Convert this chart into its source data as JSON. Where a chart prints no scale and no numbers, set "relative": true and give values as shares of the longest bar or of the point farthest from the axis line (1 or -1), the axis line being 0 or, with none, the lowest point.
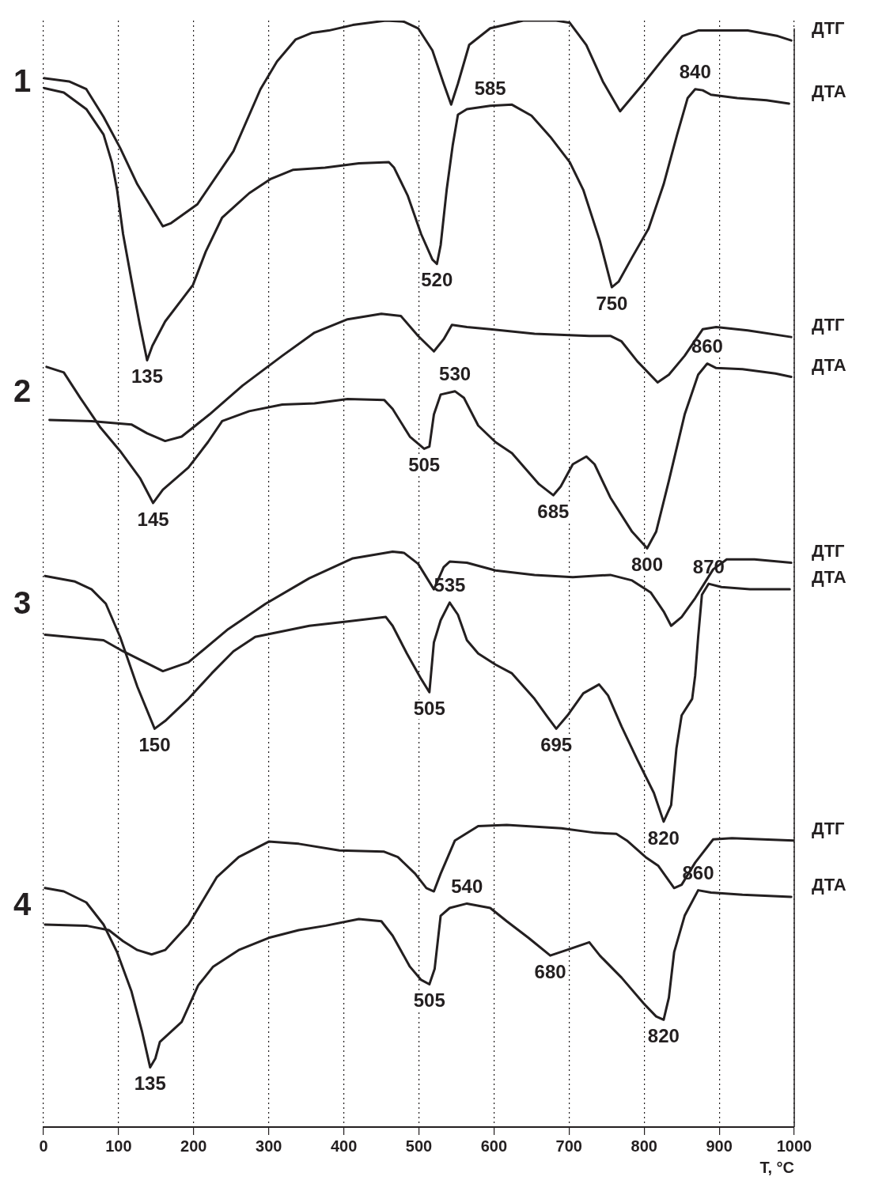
{
  "chart_data": {
    "type": "line",
    "relative": true,
    "xlabel": "T, °C",
    "xlim": [
      0,
      1000
    ],
    "xticks": [
      0,
      100,
      200,
      300,
      400,
      500,
      600,
      700,
      800,
      900,
      1000
    ],
    "grid": "x",
    "series": [
      {
        "name": "ДТГ",
        "color": "#231f20",
        "x": [
          0,
          34,
          57,
          80,
          102,
          125,
          159,
          170,
          205,
          253,
          289,
          311,
          336,
          358,
          380,
          412,
          456,
          480,
          499,
          518,
          533,
          543,
          552,
          567,
          595,
          639,
          683,
          701,
          723,
          745,
          768,
          799,
          826,
          851,
          872,
          938,
          978,
          996
        ],
        "values": [
          0.948,
          0.945,
          0.938,
          0.913,
          0.885,
          0.852,
          0.814,
          0.817,
          0.834,
          0.882,
          0.938,
          0.963,
          0.983,
          0.989,
          0.991,
          0.996,
          1.0,
          0.999,
          0.993,
          0.973,
          0.943,
          0.924,
          0.943,
          0.978,
          0.993,
          1.0,
          1.0,
          0.998,
          0.978,
          0.945,
          0.918,
          0.943,
          0.966,
          0.986,
          0.991,
          0.991,
          0.986,
          0.982
        ]
      },
      {
        "name": "ДТА",
        "color": "#231f20",
        "x": [
          0,
          27,
          57,
          80,
          91,
          98,
          106,
          117,
          128,
          138,
          145,
          162,
          199,
          216,
          238,
          274,
          303,
          332,
          375,
          420,
          460,
          467,
          485,
          503,
          518,
          524,
          529,
          537,
          545,
          552,
          564,
          595,
          624,
          650,
          675,
          701,
          719,
          741,
          757,
          766,
          784,
          806,
          826,
          844,
          858,
          868,
          878,
          889,
          924,
          963,
          993
        ],
        "values": [
          0.939,
          0.935,
          0.92,
          0.897,
          0.872,
          0.847,
          0.807,
          0.766,
          0.726,
          0.693,
          0.706,
          0.728,
          0.761,
          0.791,
          0.822,
          0.844,
          0.857,
          0.865,
          0.867,
          0.871,
          0.872,
          0.867,
          0.842,
          0.807,
          0.784,
          0.78,
          0.797,
          0.847,
          0.887,
          0.915,
          0.92,
          0.923,
          0.924,
          0.914,
          0.895,
          0.872,
          0.847,
          0.801,
          0.759,
          0.764,
          0.786,
          0.812,
          0.852,
          0.897,
          0.93,
          0.938,
          0.937,
          0.933,
          0.93,
          0.928,
          0.925
        ]
      },
      {
        "name": "ДТГ",
        "color": "#231f20",
        "x": [
          8,
          64,
          117,
          138,
          162,
          184,
          221,
          265,
          318,
          361,
          405,
          450,
          476,
          499,
          520,
          533,
          544,
          564,
          595,
          654,
          727,
          755,
          770,
          791,
          818,
          833,
          854,
          878,
          896,
          938,
          996
        ],
        "values": [
          0.639,
          0.638,
          0.635,
          0.627,
          0.62,
          0.624,
          0.644,
          0.67,
          0.697,
          0.718,
          0.73,
          0.735,
          0.733,
          0.715,
          0.701,
          0.712,
          0.725,
          0.723,
          0.721,
          0.717,
          0.715,
          0.715,
          0.71,
          0.692,
          0.673,
          0.68,
          0.697,
          0.721,
          0.723,
          0.72,
          0.714
        ]
      },
      {
        "name": "ДТА",
        "color": "#231f20",
        "x": [
          4,
          27,
          49,
          76,
          102,
          129,
          146,
          159,
          193,
          219,
          238,
          274,
          318,
          361,
          405,
          454,
          465,
          488,
          507,
          514,
          520,
          529,
          548,
          560,
          579,
          602,
          624,
          660,
          679,
          689,
          705,
          723,
          734,
          755,
          784,
          804,
          816,
          833,
          854,
          872,
          884,
          896,
          931,
          975,
          996
        ],
        "values": [
          0.687,
          0.682,
          0.659,
          0.632,
          0.611,
          0.586,
          0.564,
          0.576,
          0.596,
          0.619,
          0.638,
          0.647,
          0.653,
          0.654,
          0.658,
          0.657,
          0.649,
          0.624,
          0.613,
          0.615,
          0.644,
          0.662,
          0.665,
          0.659,
          0.634,
          0.619,
          0.609,
          0.581,
          0.571,
          0.579,
          0.599,
          0.606,
          0.599,
          0.569,
          0.538,
          0.523,
          0.538,
          0.584,
          0.644,
          0.68,
          0.69,
          0.686,
          0.685,
          0.681,
          0.678
        ]
      },
      {
        "name": "ДТГ",
        "color": "#231f20",
        "x": [
          2,
          80,
          106,
          159,
          193,
          246,
          296,
          354,
          412,
          465,
          480,
          499,
          520,
          533,
          541,
          564,
          602,
          654,
          705,
          755,
          784,
          809,
          826,
          836,
          850,
          868,
          892,
          910,
          947,
          996
        ],
        "values": [
          0.445,
          0.44,
          0.43,
          0.412,
          0.42,
          0.45,
          0.473,
          0.496,
          0.514,
          0.52,
          0.519,
          0.509,
          0.486,
          0.506,
          0.511,
          0.51,
          0.503,
          0.499,
          0.497,
          0.499,
          0.494,
          0.483,
          0.466,
          0.453,
          0.461,
          0.478,
          0.504,
          0.513,
          0.513,
          0.51
        ]
      },
      {
        "name": "ДТА",
        "color": "#231f20",
        "x": [
          2,
          42,
          64,
          83,
          102,
          125,
          148,
          162,
          193,
          224,
          253,
          282,
          318,
          354,
          405,
          456,
          465,
          484,
          503,
          514,
          520,
          529,
          541,
          552,
          564,
          579,
          602,
          624,
          654,
          672,
          683,
          698,
          719,
          740,
          752,
          770,
          791,
          813,
          826,
          836,
          843,
          850,
          864,
          868,
          872,
          877,
          886,
          903,
          941,
          994
        ],
        "values": [
          0.498,
          0.493,
          0.486,
          0.473,
          0.443,
          0.398,
          0.36,
          0.367,
          0.387,
          0.41,
          0.43,
          0.443,
          0.448,
          0.453,
          0.457,
          0.461,
          0.453,
          0.428,
          0.405,
          0.393,
          0.438,
          0.458,
          0.474,
          0.463,
          0.44,
          0.428,
          0.418,
          0.41,
          0.387,
          0.37,
          0.36,
          0.372,
          0.392,
          0.4,
          0.39,
          0.362,
          0.332,
          0.302,
          0.276,
          0.291,
          0.342,
          0.372,
          0.387,
          0.408,
          0.443,
          0.481,
          0.491,
          0.488,
          0.486,
          0.486
        ]
      },
      {
        "name": "ДТГ",
        "color": "#231f20",
        "x": [
          2,
          57,
          87,
          106,
          125,
          144,
          162,
          193,
          231,
          260,
          300,
          340,
          394,
          453,
          472,
          495,
          510,
          520,
          529,
          548,
          579,
          617,
          690,
          734,
          763,
          777,
          802,
          819,
          840,
          850,
          868,
          892,
          917,
          999
        ],
        "values": [
          0.183,
          0.182,
          0.178,
          0.168,
          0.16,
          0.156,
          0.16,
          0.183,
          0.226,
          0.244,
          0.258,
          0.256,
          0.25,
          0.249,
          0.244,
          0.229,
          0.216,
          0.213,
          0.229,
          0.259,
          0.272,
          0.273,
          0.27,
          0.266,
          0.265,
          0.259,
          0.244,
          0.236,
          0.216,
          0.219,
          0.239,
          0.26,
          0.261,
          0.259
        ]
      },
      {
        "name": "ДТА",
        "color": "#231f20",
        "x": [
          2,
          27,
          57,
          80,
          98,
          117,
          131,
          142,
          149,
          155,
          184,
          206,
          226,
          260,
          300,
          340,
          376,
          420,
          450,
          465,
          488,
          503,
          514,
          521,
          529,
          541,
          564,
          595,
          617,
          646,
          675,
          697,
          727,
          741,
          770,
          799,
          816,
          826,
          833,
          840,
          854,
          872,
          889,
          931,
          996
        ],
        "values": [
          0.216,
          0.213,
          0.203,
          0.183,
          0.158,
          0.123,
          0.087,
          0.054,
          0.062,
          0.077,
          0.095,
          0.128,
          0.145,
          0.16,
          0.171,
          0.178,
          0.182,
          0.188,
          0.186,
          0.173,
          0.145,
          0.133,
          0.129,
          0.143,
          0.191,
          0.198,
          0.202,
          0.198,
          0.186,
          0.171,
          0.155,
          0.16,
          0.167,
          0.155,
          0.135,
          0.112,
          0.1,
          0.097,
          0.117,
          0.158,
          0.191,
          0.214,
          0.212,
          0.21,
          0.208
        ]
      }
    ],
    "annotations": [
      "1",
      "2",
      "3",
      "4",
      {
        "text": "585",
        "x": 595,
        "y": 0.923
      },
      {
        "text": "840",
        "x": 868,
        "y": 0.938
      },
      {
        "text": "520",
        "x": 524,
        "y": 0.78
      },
      {
        "text": "750",
        "x": 757,
        "y": 0.759
      },
      {
        "text": "135",
        "x": 138,
        "y": 0.693
      },
      {
        "text": "530",
        "x": 548,
        "y": 0.665
      },
      {
        "text": "860",
        "x": 884,
        "y": 0.69
      },
      {
        "text": "505",
        "x": 507,
        "y": 0.613
      },
      {
        "text": "145",
        "x": 146,
        "y": 0.564
      },
      {
        "text": "685",
        "x": 679,
        "y": 0.571
      },
      {
        "text": "800",
        "x": 804,
        "y": 0.523
      },
      {
        "text": "870",
        "x": 886,
        "y": 0.491
      },
      {
        "text": "535",
        "x": 541,
        "y": 0.474
      },
      {
        "text": "505",
        "x": 514,
        "y": 0.393
      },
      {
        "text": "150",
        "x": 148,
        "y": 0.36
      },
      {
        "text": "695",
        "x": 683,
        "y": 0.36
      },
      {
        "text": "820",
        "x": 826,
        "y": 0.276
      },
      {
        "text": "860",
        "x": 872,
        "y": 0.214
      },
      {
        "text": "540",
        "x": 564,
        "y": 0.202
      },
      {
        "text": "505",
        "x": 514,
        "y": 0.129
      },
      {
        "text": "680",
        "x": 675,
        "y": 0.155
      },
      {
        "text": "820",
        "x": 826,
        "y": 0.097
      },
      {
        "text": "135",
        "x": 142,
        "y": 0.054
      }
    ]
  }
}
